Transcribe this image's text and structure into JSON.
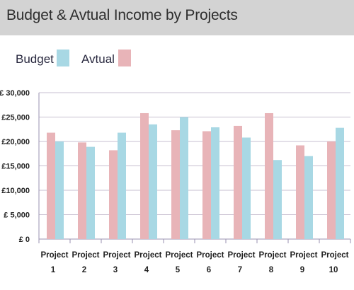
{
  "header": {
    "title": "Budget & Avtual Income by Projects"
  },
  "colors": {
    "budget": "#a8d8e4",
    "actual": "#e8b4b8",
    "grid": "#c7bfd0",
    "axis": "#9a92b0",
    "text": "#222222"
  },
  "chart_data": {
    "type": "bar",
    "title": "Budget & Avtual Income by Projects",
    "xlabel": "",
    "ylabel": "",
    "ylim": [
      0,
      30000
    ],
    "ytick_values": [
      0,
      5000,
      10000,
      15000,
      20000,
      25000,
      30000
    ],
    "ytick_labels": [
      "£ 0",
      "£ 5,000",
      "£10,000",
      "£15,000",
      "£20,000",
      "£25,000",
      "£ 30,000"
    ],
    "grid": true,
    "legend": {
      "position": "top-left",
      "entries": [
        "Budget",
        "Avtual"
      ]
    },
    "categories": [
      "Project 1",
      "Project 2",
      "Project 3",
      "Project 4",
      "Project 5",
      "Project 6",
      "Project 7",
      "Project 8",
      "Project 9",
      "Project 10"
    ],
    "category_lines": [
      [
        "Project",
        "1"
      ],
      [
        "Project",
        "2"
      ],
      [
        "Project",
        "3"
      ],
      [
        "Project",
        "4"
      ],
      [
        "Project",
        "5"
      ],
      [
        "Project",
        "6"
      ],
      [
        "Project",
        "7"
      ],
      [
        "Project",
        "8"
      ],
      [
        "Project",
        "9"
      ],
      [
        "Project",
        "10"
      ]
    ],
    "series": [
      {
        "name": "Avtual",
        "color": "#e8b4b8",
        "values": [
          21800,
          19800,
          18200,
          25800,
          22300,
          22100,
          23200,
          25800,
          19200,
          20000
        ]
      },
      {
        "name": "Budget",
        "color": "#a8d8e4",
        "values": [
          20000,
          18900,
          21800,
          23500,
          25000,
          22900,
          20800,
          16200,
          17000,
          22800
        ]
      }
    ]
  }
}
